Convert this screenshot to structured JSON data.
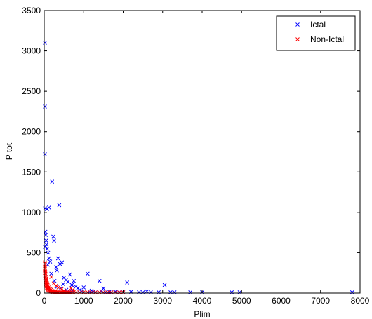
{
  "chart_data": {
    "type": "scatter",
    "title": "",
    "xlabel": "Plim",
    "ylabel": "P tot",
    "xlim": [
      0,
      8000
    ],
    "ylim": [
      0,
      3500
    ],
    "x_ticks": [
      0,
      1000,
      2000,
      3000,
      4000,
      5000,
      6000,
      7000,
      8000
    ],
    "y_ticks": [
      0,
      500,
      1000,
      1500,
      2000,
      2500,
      3000,
      3500
    ],
    "grid": false,
    "legend_position": "top-right",
    "marker": "x",
    "series": [
      {
        "name": "Ictal",
        "color": "#0000ff",
        "points": [
          [
            10,
            3100
          ],
          [
            10,
            2310
          ],
          [
            15,
            1720
          ],
          [
            20,
            1050
          ],
          [
            30,
            760
          ],
          [
            40,
            720
          ],
          [
            50,
            650
          ],
          [
            60,
            600
          ],
          [
            20,
            570
          ],
          [
            80,
            550
          ],
          [
            100,
            500
          ],
          [
            120,
            430
          ],
          [
            150,
            390
          ],
          [
            90,
            350
          ],
          [
            200,
            1380
          ],
          [
            230,
            700
          ],
          [
            250,
            650
          ],
          [
            70,
            1040
          ],
          [
            120,
            1060
          ],
          [
            380,
            1090
          ],
          [
            300,
            320
          ],
          [
            320,
            280
          ],
          [
            350,
            430
          ],
          [
            400,
            360
          ],
          [
            450,
            380
          ],
          [
            500,
            190
          ],
          [
            550,
            160
          ],
          [
            600,
            140
          ],
          [
            650,
            230
          ],
          [
            700,
            100
          ],
          [
            750,
            150
          ],
          [
            800,
            80
          ],
          [
            850,
            60
          ],
          [
            900,
            40
          ],
          [
            1000,
            70
          ],
          [
            1100,
            240
          ],
          [
            1200,
            30
          ],
          [
            1300,
            10
          ],
          [
            1400,
            150
          ],
          [
            1500,
            60
          ],
          [
            1550,
            10
          ],
          [
            1700,
            10
          ],
          [
            1900,
            10
          ],
          [
            2000,
            10
          ],
          [
            2100,
            130
          ],
          [
            2400,
            10
          ],
          [
            2500,
            10
          ],
          [
            2700,
            10
          ],
          [
            2900,
            10
          ],
          [
            3050,
            100
          ],
          [
            3200,
            10
          ],
          [
            3300,
            10
          ],
          [
            3700,
            10
          ],
          [
            4000,
            10
          ],
          [
            4750,
            10
          ],
          [
            4950,
            10
          ],
          [
            7800,
            10
          ],
          [
            180,
            240
          ],
          [
            260,
            150
          ],
          [
            330,
            80
          ],
          [
            420,
            60
          ],
          [
            480,
            110
          ],
          [
            560,
            40
          ],
          [
            640,
            20
          ],
          [
            720,
            30
          ],
          [
            950,
            20
          ],
          [
            1150,
            15
          ],
          [
            1250,
            20
          ],
          [
            1450,
            25
          ],
          [
            1650,
            15
          ],
          [
            1800,
            20
          ],
          [
            2200,
            15
          ],
          [
            2600,
            20
          ]
        ]
      },
      {
        "name": "Non-Ictal",
        "color": "#ff0000",
        "points": [
          [
            5,
            380
          ],
          [
            5,
            340
          ],
          [
            8,
            300
          ],
          [
            10,
            270
          ],
          [
            12,
            250
          ],
          [
            15,
            230
          ],
          [
            20,
            210
          ],
          [
            25,
            190
          ],
          [
            30,
            170
          ],
          [
            35,
            150
          ],
          [
            40,
            130
          ],
          [
            45,
            110
          ],
          [
            50,
            95
          ],
          [
            60,
            80
          ],
          [
            70,
            65
          ],
          [
            80,
            55
          ],
          [
            90,
            45
          ],
          [
            100,
            35
          ],
          [
            120,
            30
          ],
          [
            140,
            25
          ],
          [
            160,
            20
          ],
          [
            180,
            18
          ],
          [
            200,
            15
          ],
          [
            220,
            12
          ],
          [
            250,
            10
          ],
          [
            280,
            8
          ],
          [
            300,
            6
          ],
          [
            330,
            5
          ],
          [
            360,
            4
          ],
          [
            400,
            3
          ],
          [
            450,
            2
          ],
          [
            500,
            2
          ],
          [
            550,
            1
          ],
          [
            600,
            1
          ],
          [
            650,
            1
          ],
          [
            700,
            1
          ],
          [
            800,
            1
          ],
          [
            900,
            1
          ],
          [
            1000,
            1
          ],
          [
            1100,
            1
          ],
          [
            1200,
            1
          ],
          [
            1300,
            1
          ],
          [
            1400,
            1
          ],
          [
            1500,
            1
          ],
          [
            1600,
            1
          ],
          [
            1700,
            1
          ],
          [
            1800,
            1
          ],
          [
            1900,
            1
          ],
          [
            2000,
            1
          ],
          [
            10,
            360
          ],
          [
            18,
            320
          ],
          [
            22,
            280
          ],
          [
            28,
            260
          ],
          [
            33,
            240
          ],
          [
            38,
            200
          ],
          [
            48,
            180
          ],
          [
            55,
            160
          ],
          [
            65,
            140
          ],
          [
            75,
            120
          ],
          [
            85,
            100
          ],
          [
            95,
            85
          ],
          [
            110,
            70
          ],
          [
            130,
            60
          ],
          [
            150,
            50
          ],
          [
            170,
            40
          ],
          [
            190,
            30
          ],
          [
            210,
            25
          ],
          [
            240,
            20
          ],
          [
            270,
            15
          ],
          [
            310,
            12
          ],
          [
            350,
            10
          ],
          [
            420,
            8
          ],
          [
            480,
            6
          ],
          [
            520,
            5
          ],
          [
            580,
            4
          ],
          [
            620,
            3
          ],
          [
            680,
            60
          ],
          [
            720,
            40
          ],
          [
            760,
            20
          ],
          [
            180,
            200
          ],
          [
            240,
            120
          ],
          [
            300,
            90
          ],
          [
            360,
            70
          ],
          [
            440,
            50
          ],
          [
            500,
            30
          ]
        ]
      }
    ]
  }
}
